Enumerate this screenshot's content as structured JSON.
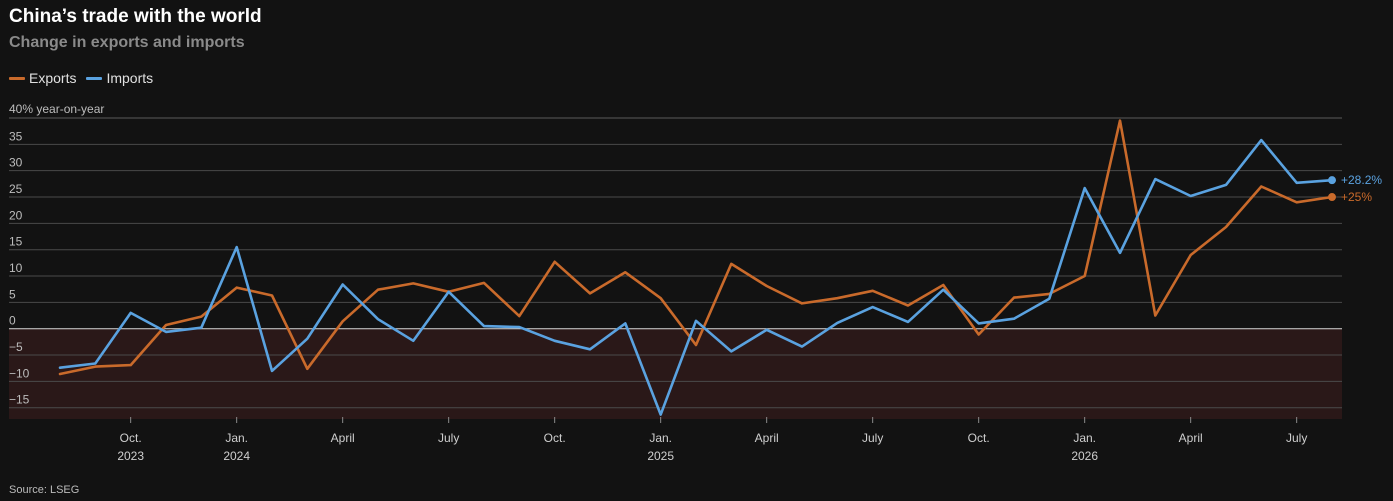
{
  "chart_data": {
    "type": "line",
    "title": "China’s trade with the world",
    "subtitle": "Change in exports and imports",
    "ylabel": "40% year-on-year",
    "ylim": [
      -16,
      40
    ],
    "yticks": [
      35,
      30,
      25,
      20,
      15,
      10,
      5,
      0,
      -5,
      -10,
      -15
    ],
    "x": [
      "2023-08",
      "2023-09",
      "2023-10",
      "2023-11",
      "2023-12",
      "2024-01",
      "2024-02",
      "2024-03",
      "2024-04",
      "2024-05",
      "2024-06",
      "2024-07",
      "2024-08",
      "2024-09",
      "2024-10",
      "2024-11",
      "2024-12",
      "2025-01",
      "2025-02",
      "2025-03",
      "2025-04",
      "2025-05",
      "2025-06",
      "2025-07",
      "2025-08",
      "2025-09",
      "2025-10",
      "2025-11",
      "2025-12",
      "2026-01",
      "2026-02",
      "2026-03",
      "2026-04",
      "2026-05",
      "2026-06",
      "2026-07",
      "2026-08"
    ],
    "xticks": [
      {
        "x": "2023-10",
        "label": "Oct.",
        "year": "2023"
      },
      {
        "x": "2024-01",
        "label": "Jan.",
        "year": "2024"
      },
      {
        "x": "2024-04",
        "label": "April",
        "year": ""
      },
      {
        "x": "2024-07",
        "label": "July",
        "year": ""
      },
      {
        "x": "2024-10",
        "label": "Oct.",
        "year": ""
      },
      {
        "x": "2025-01",
        "label": "Jan.",
        "year": "2025"
      },
      {
        "x": "2025-04",
        "label": "April",
        "year": ""
      },
      {
        "x": "2025-07",
        "label": "July",
        "year": ""
      },
      {
        "x": "2025-10",
        "label": "Oct.",
        "year": ""
      },
      {
        "x": "2026-01",
        "label": "Jan.",
        "year": "2026"
      },
      {
        "x": "2026-04",
        "label": "April",
        "year": ""
      },
      {
        "x": "2026-07",
        "label": "July",
        "year": ""
      }
    ],
    "series": [
      {
        "name": "Exports",
        "color": "#c96a2b",
        "values": [
          -8.6,
          -7.2,
          -6.9,
          0.7,
          2.3,
          7.8,
          6.3,
          -7.6,
          1.4,
          7.4,
          8.6,
          7.0,
          8.7,
          2.4,
          12.7,
          6.7,
          10.7,
          5.8,
          -3.1,
          12.3,
          8.1,
          4.8,
          5.8,
          7.2,
          4.4,
          8.3,
          -1.1,
          5.9,
          6.6,
          10.0,
          39.5,
          2.5,
          14.0,
          19.3,
          27.0,
          24.0,
          25.0
        ],
        "end_label": "+25%"
      },
      {
        "name": "Imports",
        "color": "#5aa2e0",
        "values": [
          -7.4,
          -6.6,
          3.0,
          -0.6,
          0.2,
          15.5,
          -8.0,
          -1.9,
          8.4,
          1.8,
          -2.3,
          7.0,
          0.5,
          0.3,
          -2.3,
          -3.9,
          1.0,
          -16.3,
          1.5,
          -4.3,
          -0.2,
          -3.4,
          1.1,
          4.1,
          1.3,
          7.4,
          1.0,
          1.9,
          5.7,
          26.7,
          14.4,
          28.4,
          25.2,
          27.3,
          35.8,
          27.7,
          28.2
        ],
        "end_label": "+28.2%"
      }
    ],
    "legend": "top-left",
    "grid": true,
    "source": "Source: LSEG"
  }
}
